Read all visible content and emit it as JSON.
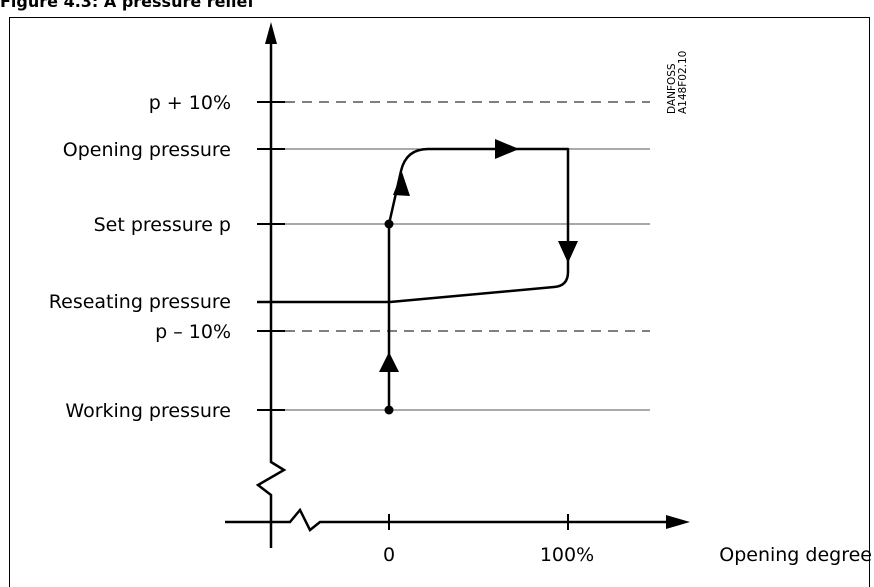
{
  "figure": {
    "title": "Figure 4.3: A pressure relief"
  },
  "watermark": {
    "line1": "DANFOSS",
    "line2": "A148F02.10"
  },
  "y_axis": {
    "levels": [
      {
        "id": "p-plus-10",
        "label": "p + 10%",
        "style": "dashed"
      },
      {
        "id": "opening",
        "label": "Opening pressure",
        "style": "solid"
      },
      {
        "id": "set",
        "label": "Set pressure p",
        "style": "solid"
      },
      {
        "id": "reseating",
        "label": "Reseating pressure",
        "style": "none"
      },
      {
        "id": "p-minus-10",
        "label": "p – 10%",
        "style": "dashed"
      },
      {
        "id": "working",
        "label": "Working pressure",
        "style": "solid"
      }
    ]
  },
  "x_axis": {
    "title": "Opening degree",
    "ticks": [
      "0",
      "100%"
    ]
  },
  "curve": {
    "description_points": [
      "Working pressure",
      "Set pressure p",
      "Opening pressure",
      "100%",
      "Reseating pressure"
    ],
    "stroke_color": "#000000"
  }
}
